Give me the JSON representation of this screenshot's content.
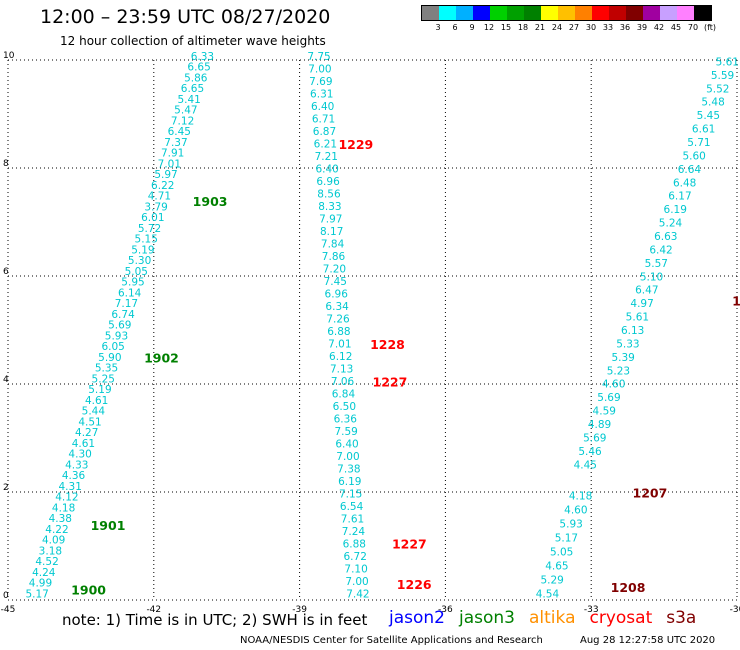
{
  "title": "12:00 – 23:59 UTC 08/27/2020",
  "subtitle": "12 hour collection of altimeter wave heights",
  "legend": {
    "colors": [
      "#808080",
      "#00ffff",
      "#00b0ff",
      "#0000ff",
      "#00d000",
      "#00a000",
      "#008000",
      "#ffff00",
      "#ffc000",
      "#ff8000",
      "#ff0000",
      "#c00000",
      "#800000",
      "#a000a0",
      "#c8a0ff",
      "#ff80ff",
      "#000000"
    ],
    "labels": [
      "3",
      "6",
      "9",
      "12",
      "15",
      "18",
      "21",
      "24",
      "27",
      "30",
      "33",
      "36",
      "39",
      "42",
      "45",
      "70",
      "(ft)"
    ]
  },
  "axes": {
    "x_ticks": [
      "-45",
      "-42",
      "-39",
      "-36",
      "-33",
      "-30"
    ],
    "y_ticks": [
      "0",
      "2",
      "4",
      "6",
      "8",
      "10"
    ],
    "x_range": [
      -45,
      -30
    ],
    "y_range": [
      0,
      10
    ]
  },
  "tracks": [
    {
      "color": "#00c8d0",
      "values": [
        "5.17",
        "4.99",
        "4.24",
        "4.52",
        "3.18",
        "4.09",
        "4.22",
        "4.38",
        "4.18",
        "4.12",
        "4.31",
        "4.36",
        "4.33",
        "4.30",
        "4.61",
        "4.27",
        "4.51",
        "5.44",
        "4.61",
        "5.19",
        "5.25",
        "5.35",
        "5.90",
        "6.05",
        "5.93",
        "5.69",
        "6.74",
        "7.17",
        "6.14",
        "5.95",
        "5.05",
        "5.30",
        "5.19",
        "5.15",
        "5.72",
        "6.01",
        "3.79",
        "4.71",
        "6.22",
        "5.97",
        "7.01",
        "7.91",
        "7.37",
        "6.45",
        "7.12",
        "5.47",
        "5.41",
        "6.65",
        "5.86",
        "6.65",
        "6.33"
      ],
      "start": [
        -44.4,
        0.05
      ],
      "end": [
        -41.0,
        10.0
      ]
    },
    {
      "color": "#00c8d0",
      "values": [
        "7.42",
        "7.00",
        "7.10",
        "6.72",
        "6.88",
        "7.24",
        "7.61",
        "6.54",
        "7.15",
        "6.19",
        "7.38",
        "7.00",
        "6.40",
        "7.59",
        "6.36",
        "6.50",
        "6.84",
        "7.06",
        "7.13",
        "6.12",
        "7.01",
        "6.88",
        "7.26",
        "6.34",
        "6.96",
        "7.45",
        "7.20",
        "7.86",
        "7.84",
        "8.17",
        "7.97",
        "8.33",
        "8.56",
        "6.96",
        "6.40",
        "7.21",
        "6.21",
        "6.87",
        "6.71",
        "6.40",
        "6.31",
        "7.69",
        "7.00",
        "7.75"
      ],
      "start": [
        -37.8,
        0.05
      ],
      "end": [
        -38.6,
        10.0
      ]
    },
    {
      "color": "#00c8d0",
      "values": [
        "4.54",
        "5.29",
        "4.65",
        "5.05",
        "5.17",
        "5.93",
        "4.60",
        "4.18",
        "4.45",
        "5.46",
        "5.69",
        "4.89",
        "4.59",
        "5.69",
        "4.60",
        "5.23",
        "5.39",
        "5.33",
        "6.13",
        "5.61",
        "4.97",
        "6.47",
        "5.10",
        "5.57",
        "6.42",
        "6.63",
        "5.24",
        "6.19",
        "6.17",
        "6.48",
        "6.64",
        "5.60",
        "5.71",
        "6.61",
        "5.45",
        "5.48",
        "5.52",
        "5.59",
        "5.61"
      ],
      "start": [
        -33.9,
        0.05
      ],
      "end": [
        -30.2,
        9.9
      ],
      "gap": [
        2.0,
        2.4
      ]
    }
  ],
  "time_labels": [
    {
      "text": "1900",
      "lon": -43.7,
      "lat": 0.1,
      "color": "#008000"
    },
    {
      "text": "1901",
      "lon": -43.3,
      "lat": 1.3,
      "color": "#008000"
    },
    {
      "text": "1902",
      "lon": -42.2,
      "lat": 4.4,
      "color": "#008000"
    },
    {
      "text": "1903",
      "lon": -41.2,
      "lat": 7.3,
      "color": "#008000"
    },
    {
      "text": "1226",
      "lon": -37.0,
      "lat": 0.2,
      "color": "#ff0000"
    },
    {
      "text": "1227",
      "lon": -37.1,
      "lat": 0.95,
      "color": "#ff0000"
    },
    {
      "text": "1227",
      "lon": -37.5,
      "lat": 3.95,
      "color": "#ff0000"
    },
    {
      "text": "1228",
      "lon": -37.55,
      "lat": 4.65,
      "color": "#ff0000"
    },
    {
      "text": "1229",
      "lon": -38.2,
      "lat": 8.35,
      "color": "#ff0000"
    },
    {
      "text": "1207",
      "lon": -32.15,
      "lat": 1.9,
      "color": "#800000"
    },
    {
      "text": "1208",
      "lon": -32.6,
      "lat": 0.15,
      "color": "#800000"
    },
    {
      "text": "1",
      "lon": -30.1,
      "lat": 5.45,
      "color": "#800000"
    }
  ],
  "footer": {
    "note": "note:  1) Time is in UTC;  2) SWH is in feet",
    "credit": "NOAA/NESDIS Center for Satellite Applications and Research",
    "stamp": "Aug 28 12:27:58 UTC 2020"
  },
  "satellites": [
    {
      "name": "jason2",
      "color": "#0000ff"
    },
    {
      "name": "jason3",
      "color": "#008000"
    },
    {
      "name": "altika",
      "color": "#ff9000"
    },
    {
      "name": "cryosat",
      "color": "#ff0000"
    },
    {
      "name": "s3a",
      "color": "#800000"
    }
  ]
}
